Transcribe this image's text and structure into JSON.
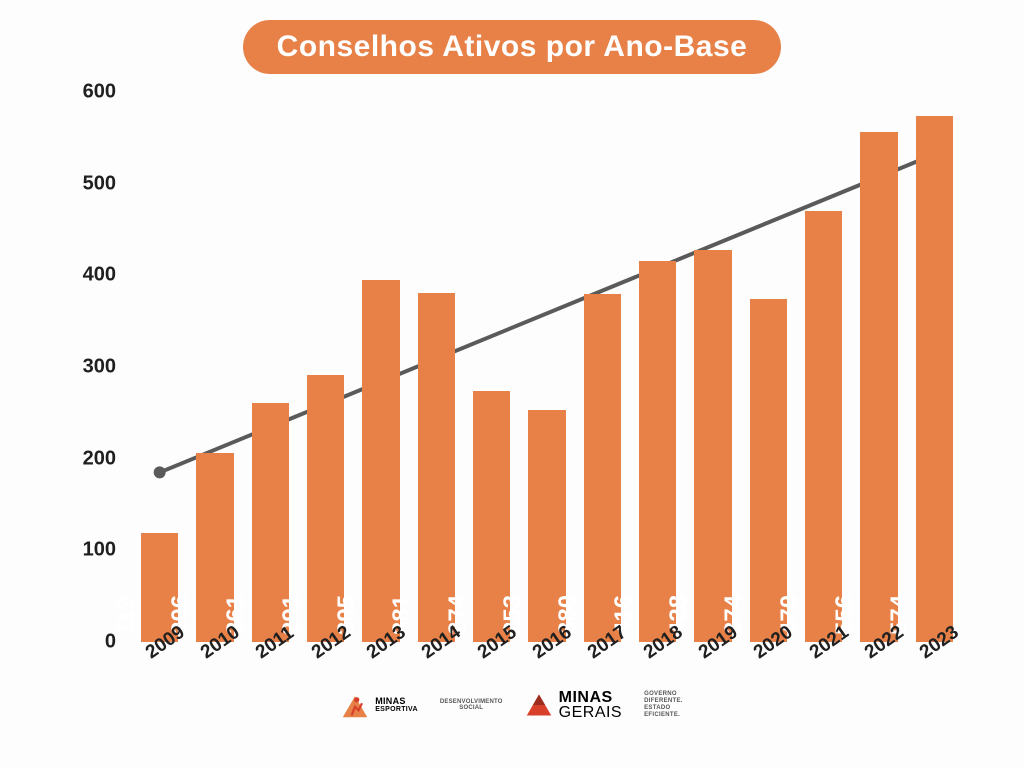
{
  "title": {
    "text": "Conselhos Ativos por Ano-Base",
    "bg_color": "#e78148",
    "text_color": "#ffffff",
    "fontsize": 30
  },
  "chart": {
    "type": "bar",
    "categories": [
      "2009",
      "2010",
      "2011",
      "2012",
      "2013",
      "2014",
      "2015",
      "2016",
      "2017",
      "2018",
      "2019",
      "2020",
      "2021",
      "2022",
      "2023"
    ],
    "values": [
      119,
      206,
      261,
      291,
      395,
      381,
      274,
      253,
      380,
      416,
      428,
      374,
      470,
      556,
      574
    ],
    "bar_color": "#e78148",
    "value_label_color": "#ffffff",
    "value_label_fontsize": 24,
    "xlabel_color": "#202020",
    "xlabel_fontsize": 19,
    "ylabel_color": "#202020",
    "ylabel_fontsize": 20,
    "ylim": [
      0,
      600
    ],
    "ytick_step": 100,
    "bar_width": 0.68,
    "background_color": "#fdfdfd",
    "trend": {
      "start": {
        "idx": 0,
        "y": 185
      },
      "end": {
        "idx": 14,
        "y": 532
      },
      "color": "#5a5a5a",
      "width": 4,
      "marker_color": "#5a5a5a",
      "marker_radius": 6
    }
  },
  "footer": {
    "logo1": {
      "top": "MINAS",
      "bottom": "ESPORTIVA",
      "accent": "#d9402b"
    },
    "logo2": {
      "top": "DESENVOLVIMENTO",
      "bottom": "SOCIAL"
    },
    "logo3": {
      "line1": "MINAS",
      "line2": "GERAIS",
      "accent": "#d9402b"
    },
    "logo4": {
      "l1": "GOVERNO",
      "l2": "DIFERENTE.",
      "l3": "ESTADO",
      "l4": "EFICIENTE."
    }
  }
}
